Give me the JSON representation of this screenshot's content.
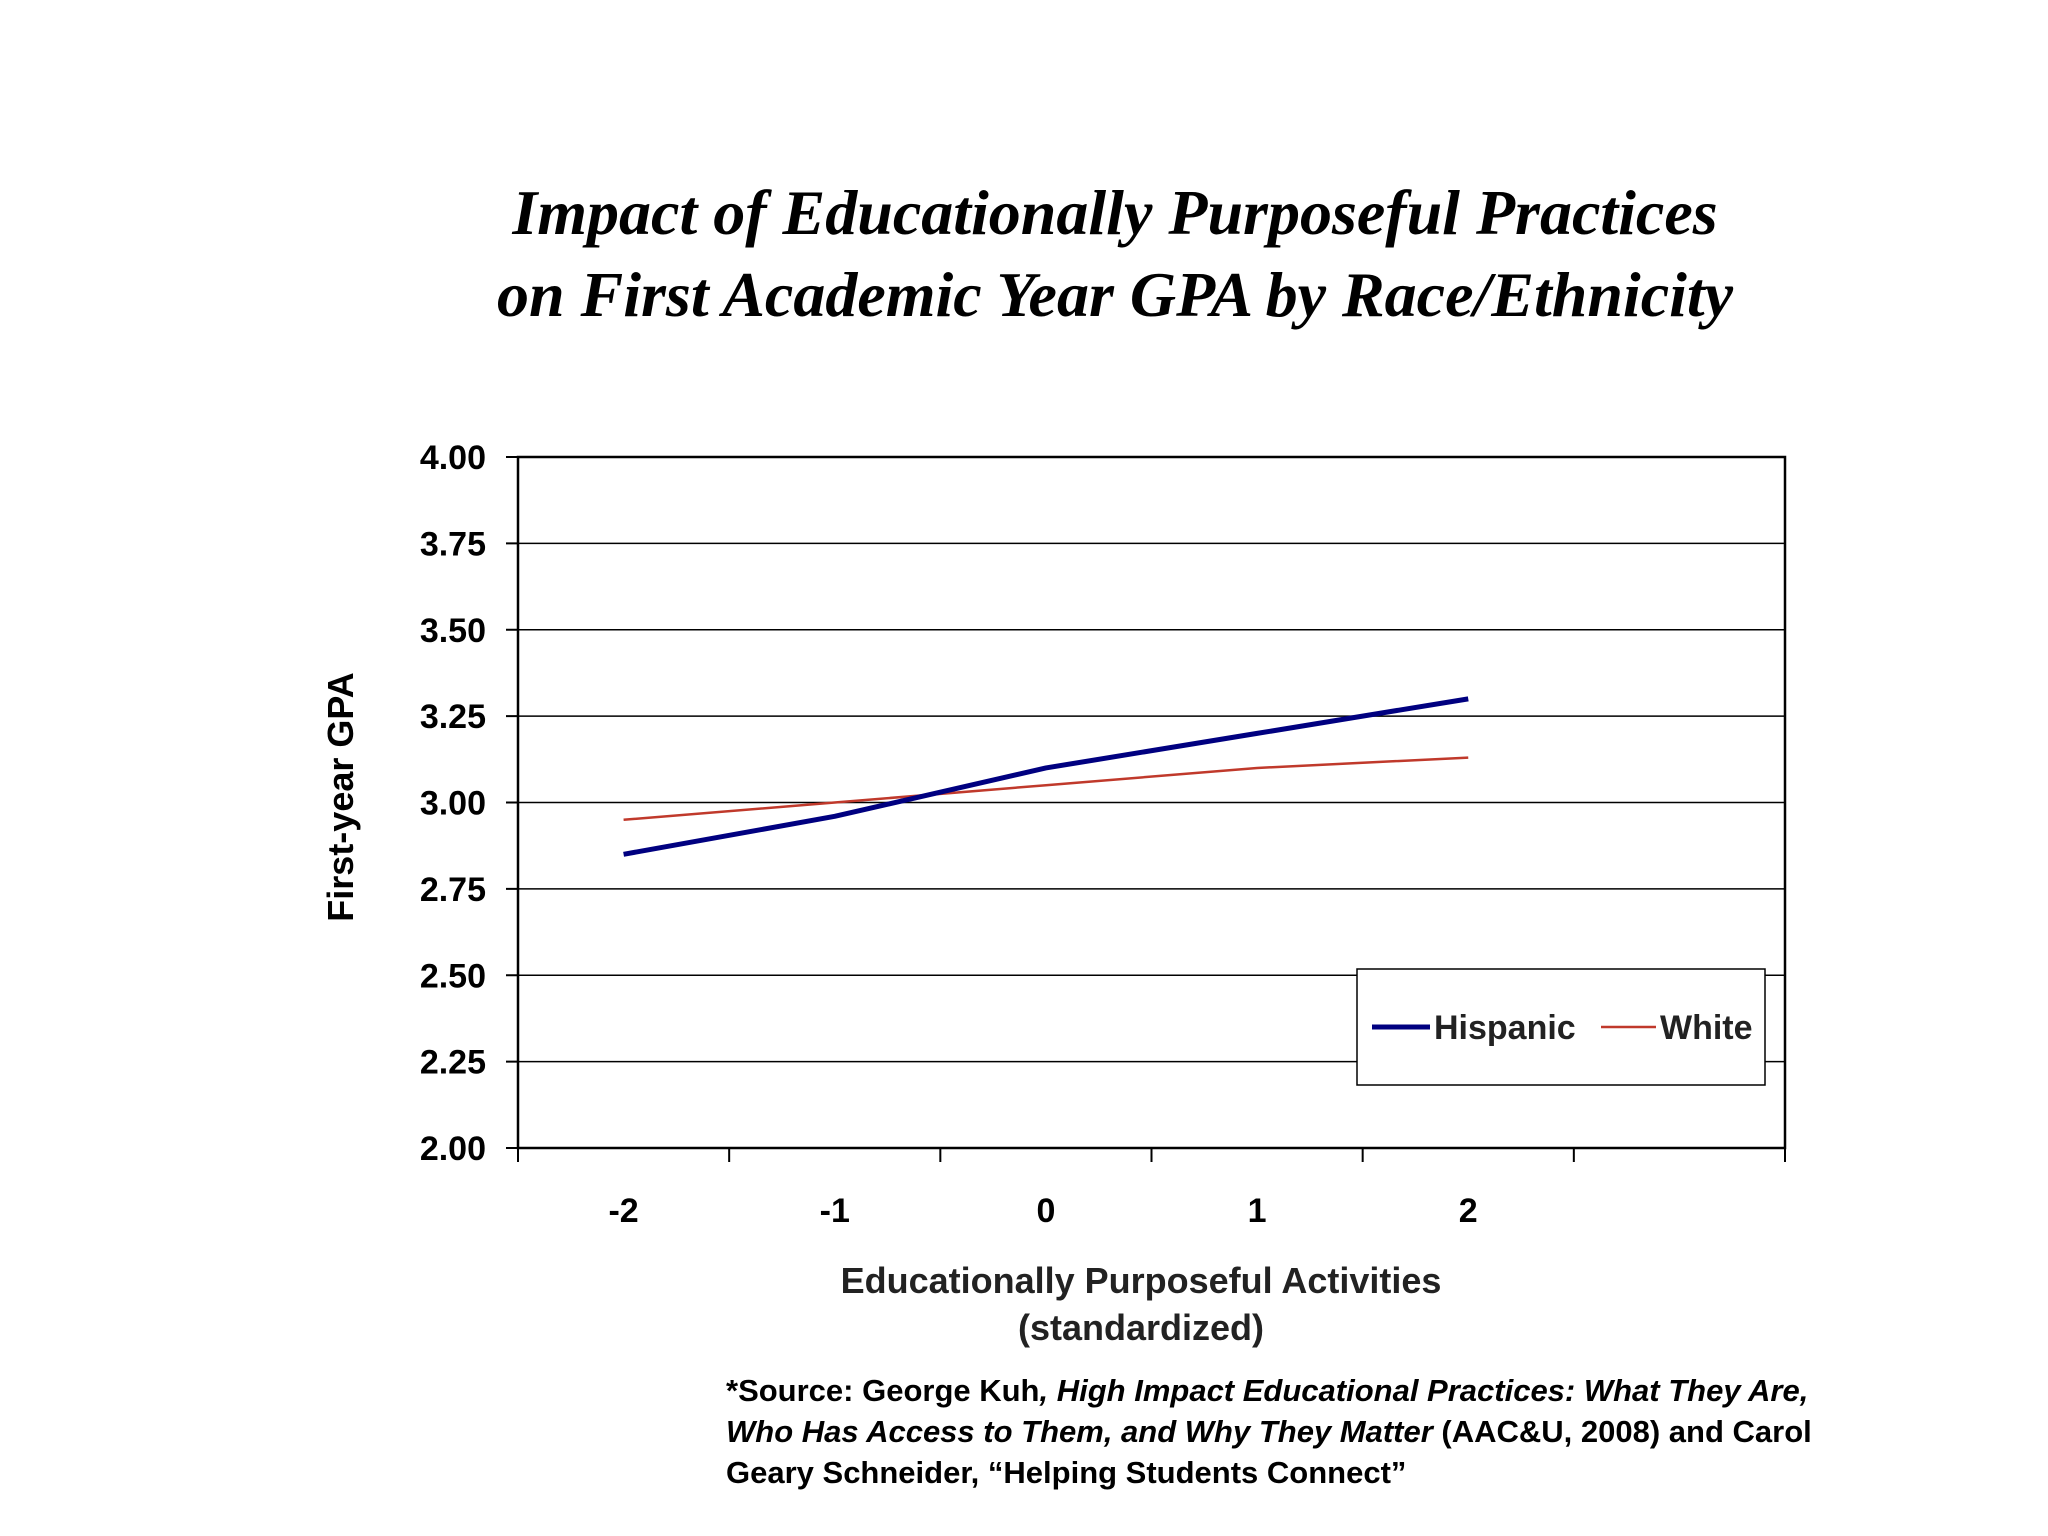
{
  "title_lines": [
    "Impact of Educationally Purposeful Practices",
    "on First Academic Year GPA by Race/Ethnicity"
  ],
  "source": {
    "prefix": "*Source: George Kuh",
    "italic1": ", High Impact Educational Practices: What They Are,",
    "italic2": "Who Has Access to Them, and Why They Matter",
    "mid": " (AAC&U, 2008) and Carol",
    "line3": "Geary Schneider, “Helping Students Connect”"
  },
  "chart_data": {
    "type": "line",
    "x": [
      -2,
      -1,
      0,
      1,
      2
    ],
    "x_tick_labels": [
      "-2",
      "-1",
      "0",
      "1",
      "2"
    ],
    "xlabel_lines": [
      "Educationally Purposeful Activities",
      "(standardized)"
    ],
    "ylabel": "First-year GPA",
    "ylim": [
      2.0,
      4.0
    ],
    "y_ticks": [
      2.0,
      2.25,
      2.5,
      2.75,
      3.0,
      3.25,
      3.5,
      3.75,
      4.0
    ],
    "y_tick_labels": [
      "2.00",
      "2.25",
      "2.50",
      "2.75",
      "3.00",
      "3.25",
      "3.50",
      "3.75",
      "4.00"
    ],
    "grid": true,
    "legend_position": "bottom-right",
    "series": [
      {
        "name": "Hispanic",
        "values": [
          2.85,
          2.96,
          3.1,
          3.2,
          3.3
        ],
        "color": "#000080"
      },
      {
        "name": "White",
        "values": [
          2.95,
          3.0,
          3.05,
          3.1,
          3.13
        ],
        "color": "#c0392b"
      }
    ]
  }
}
